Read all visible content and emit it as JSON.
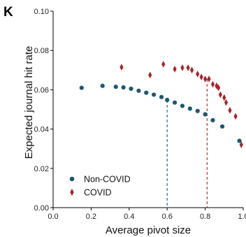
{
  "panel_label": "K",
  "chart_data": {
    "type": "scatter",
    "xlabel": "Average pivot size",
    "ylabel": "Expected journal hit rate",
    "xlim": [
      0,
      1.0
    ],
    "ylim": [
      0,
      0.1
    ],
    "x_ticks": [
      "0.0",
      "0.2",
      "0.4",
      "0.6",
      "0.8",
      "1.0"
    ],
    "y_ticks": [
      "0.00",
      "0.02",
      "0.04",
      "0.06",
      "0.08",
      "0.10"
    ],
    "grid": false,
    "legend_position": "bottom-left",
    "series": [
      {
        "name": "Non-COVID",
        "marker": "circle",
        "color": "#1b5872",
        "points": [
          [
            0.15,
            0.061
          ],
          [
            0.26,
            0.062
          ],
          [
            0.33,
            0.0615
          ],
          [
            0.37,
            0.0612
          ],
          [
            0.41,
            0.0605
          ],
          [
            0.45,
            0.0595
          ],
          [
            0.49,
            0.0585
          ],
          [
            0.53,
            0.0575
          ],
          [
            0.57,
            0.0563
          ],
          [
            0.6,
            0.0548
          ],
          [
            0.64,
            0.0535
          ],
          [
            0.68,
            0.0518
          ],
          [
            0.72,
            0.0504
          ],
          [
            0.76,
            0.0492
          ],
          [
            0.8,
            0.0475
          ],
          [
            0.84,
            0.0445
          ],
          [
            0.89,
            0.0413
          ],
          [
            0.98,
            0.034
          ]
        ]
      },
      {
        "name": "COVID",
        "marker": "diamond",
        "color": "#a8242a",
        "points": [
          [
            0.36,
            0.0715
          ],
          [
            0.51,
            0.0675
          ],
          [
            0.58,
            0.073
          ],
          [
            0.64,
            0.0705
          ],
          [
            0.68,
            0.0712
          ],
          [
            0.71,
            0.0712
          ],
          [
            0.73,
            0.07
          ],
          [
            0.76,
            0.068
          ],
          [
            0.78,
            0.0665
          ],
          [
            0.8,
            0.0655
          ],
          [
            0.82,
            0.0655
          ],
          [
            0.84,
            0.0628
          ],
          [
            0.86,
            0.062
          ],
          [
            0.87,
            0.061
          ],
          [
            0.88,
            0.0575
          ],
          [
            0.9,
            0.056
          ],
          [
            0.91,
            0.0535
          ],
          [
            0.93,
            0.0495
          ],
          [
            0.96,
            0.0465
          ],
          [
            0.99,
            0.032
          ]
        ]
      }
    ],
    "reference_lines": [
      {
        "series": "Non-COVID",
        "x": 0.6,
        "y": 0.0548,
        "color": "#1b5872"
      },
      {
        "series": "COVID",
        "x": 0.81,
        "y": 0.0655,
        "color": "#a8242a"
      }
    ]
  }
}
